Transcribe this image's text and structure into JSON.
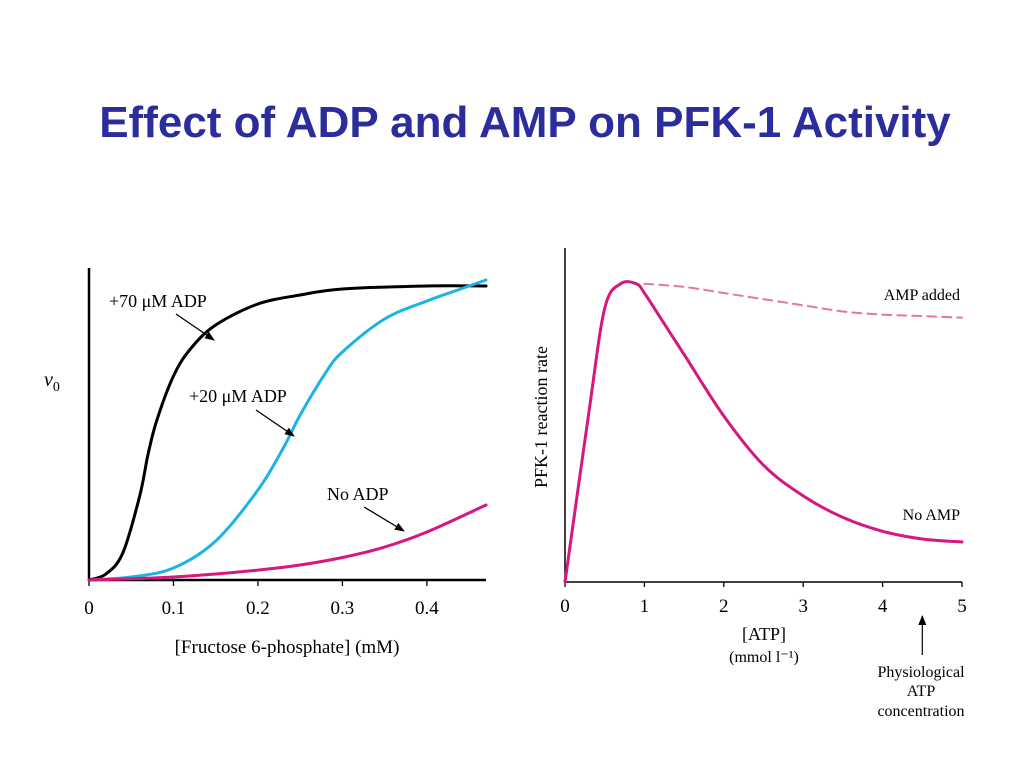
{
  "slide": {
    "title": "Effect of ADP and AMP on PFK-1 Activity"
  },
  "chart_data": [
    {
      "type": "line",
      "xlabel": "[Fructose 6-phosphate] (mM)",
      "ylabel": "v0",
      "xlim": [
        0,
        0.47
      ],
      "ylim": [
        0,
        1.04
      ],
      "x_ticks": [
        "0",
        "0.1",
        "0.2",
        "0.3",
        "0.4"
      ],
      "x_tick_values": [
        0,
        0.1,
        0.2,
        0.3,
        0.4
      ],
      "series": [
        {
          "name": "+70 μM ADP",
          "color": "#000000",
          "x": [
            0,
            0.02,
            0.04,
            0.06,
            0.07,
            0.08,
            0.1,
            0.12,
            0.15,
            0.2,
            0.25,
            0.3,
            0.4,
            0.47
          ],
          "y": [
            0,
            0.02,
            0.09,
            0.28,
            0.42,
            0.53,
            0.68,
            0.77,
            0.85,
            0.92,
            0.95,
            0.97,
            0.98,
            0.98
          ]
        },
        {
          "name": "+20 μM ADP",
          "color": "#1ab4e6",
          "x": [
            0,
            0.05,
            0.1,
            0.15,
            0.2,
            0.23,
            0.25,
            0.28,
            0.3,
            0.35,
            0.4,
            0.44,
            0.47
          ],
          "y": [
            0,
            0.01,
            0.04,
            0.13,
            0.3,
            0.44,
            0.55,
            0.69,
            0.76,
            0.87,
            0.93,
            0.97,
            1.0
          ]
        },
        {
          "name": "No ADP",
          "color": "#d6177f",
          "x": [
            0,
            0.05,
            0.1,
            0.15,
            0.2,
            0.25,
            0.3,
            0.35,
            0.4,
            0.47
          ],
          "y": [
            0,
            0.004,
            0.01,
            0.02,
            0.033,
            0.05,
            0.075,
            0.11,
            0.16,
            0.25
          ]
        }
      ],
      "annotations": [
        "+70 μM ADP",
        "+20 μM ADP",
        "No ADP"
      ]
    },
    {
      "type": "line",
      "xlabel": "[ATP]",
      "xlabel2": "(mmol l⁻¹)",
      "ylabel": "PFK-1 reaction rate",
      "xlim": [
        0,
        5
      ],
      "ylim": [
        0,
        1.08
      ],
      "x_ticks": [
        "0",
        "1",
        "2",
        "3",
        "4",
        "5"
      ],
      "x_tick_values": [
        0,
        1,
        2,
        3,
        4,
        5
      ],
      "series": [
        {
          "name": "No AMP",
          "color": "#d6177f",
          "style": "solid",
          "x": [
            0,
            0.3,
            0.5,
            0.7,
            0.9,
            1.0,
            1.2,
            1.5,
            2.0,
            2.5,
            3.0,
            3.5,
            4.0,
            4.5,
            5.0
          ],
          "y": [
            0,
            0.55,
            0.89,
            0.97,
            0.97,
            0.94,
            0.86,
            0.74,
            0.54,
            0.38,
            0.28,
            0.21,
            0.165,
            0.14,
            0.13
          ]
        },
        {
          "name": "AMP added",
          "color": "#e8759f",
          "style": "dashed",
          "x": [
            1.0,
            1.5,
            2.0,
            2.5,
            3.0,
            3.5,
            4.0,
            4.5,
            5.0
          ],
          "y": [
            0.97,
            0.96,
            0.94,
            0.92,
            0.9,
            0.88,
            0.87,
            0.865,
            0.86
          ]
        }
      ],
      "annotations": [
        "AMP added",
        "No AMP"
      ],
      "marker": {
        "x": 4.5,
        "label_lines": [
          "Physiological",
          "ATP",
          "concentration"
        ]
      }
    }
  ]
}
